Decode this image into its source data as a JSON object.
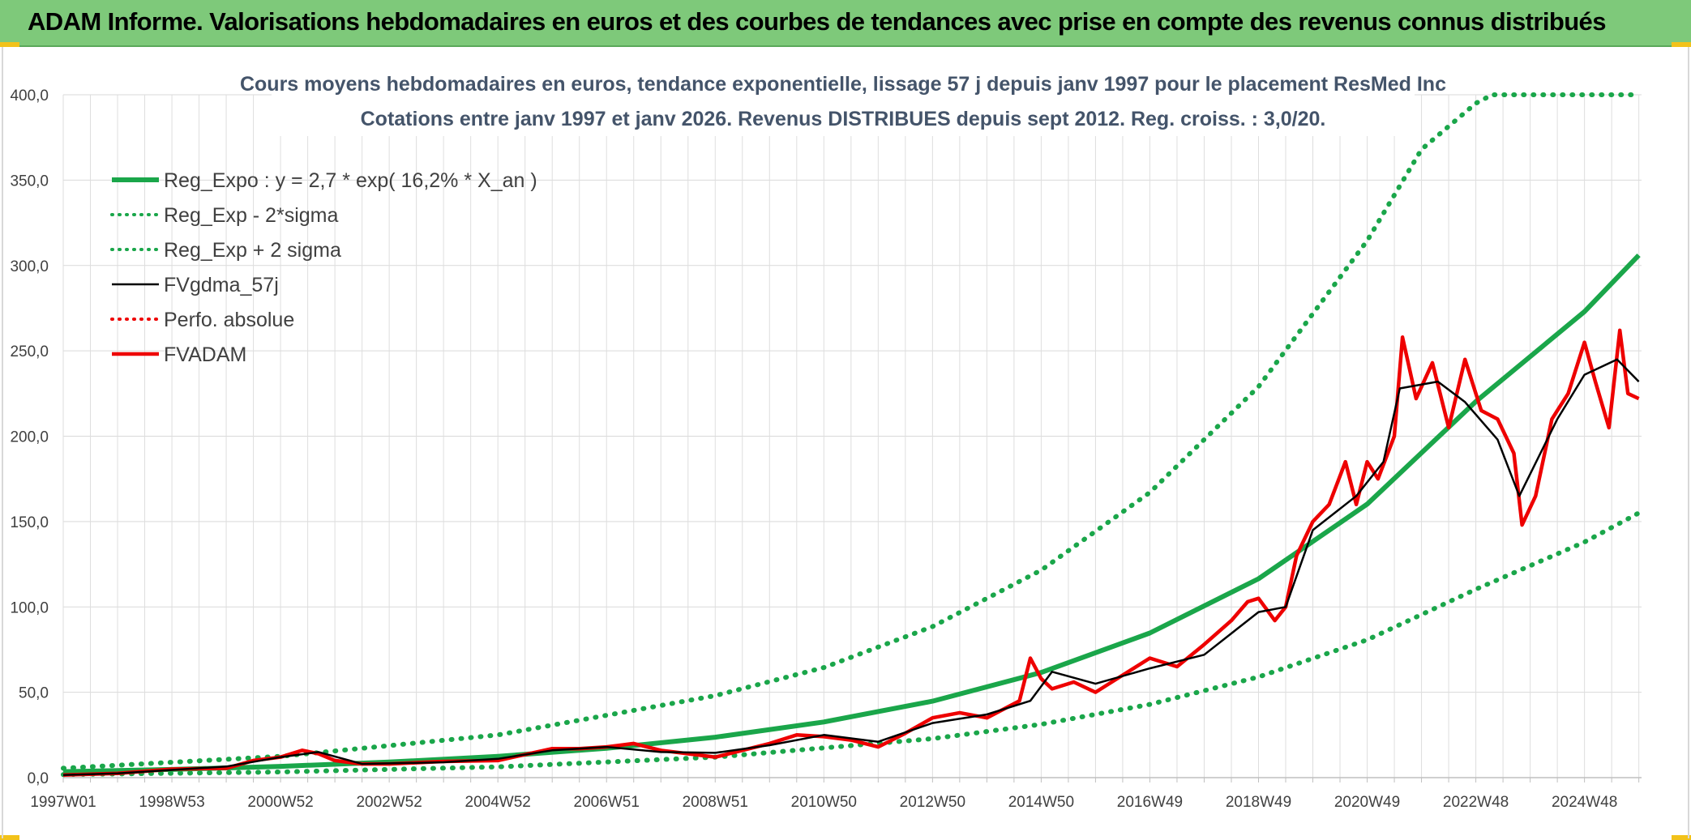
{
  "banner": {
    "title": "ADAM Informe. Valorisations hebdomadaires en euros et des courbes de tendances avec prise en compte des revenus connus distribués"
  },
  "colors": {
    "banner_bg": "#7ec97a",
    "trend_green": "#1aa64a",
    "series_black": "#000000",
    "series_red": "#ee0000",
    "title_blue": "#44546a"
  },
  "chart_data": {
    "type": "line",
    "title": "Cours moyens hebdomadaires en euros, tendance exponentielle, lissage 57 j depuis janv 1997 pour le placement ResMed Inc",
    "subtitle": "Cotations entre janv 1997 et janv 2026. Revenus DISTRIBUES depuis sept 2012. Reg. croiss. : 3,0/20.",
    "xlabel": "",
    "ylabel": "",
    "ylim": [
      0,
      400
    ],
    "xlim": [
      1997.0,
      2026.05
    ],
    "y_ticks": [
      "0,0",
      "50,0",
      "100,0",
      "150,0",
      "200,0",
      "250,0",
      "300,0",
      "350,0",
      "400,0"
    ],
    "x_ticks": [
      {
        "label": "1997W01",
        "x": 1997.0
      },
      {
        "label": "1998W53",
        "x": 1999.0
      },
      {
        "label": "2000W52",
        "x": 2001.0
      },
      {
        "label": "2002W52",
        "x": 2003.0
      },
      {
        "label": "2004W52",
        "x": 2005.0
      },
      {
        "label": "2006W51",
        "x": 2007.0
      },
      {
        "label": "2008W51",
        "x": 2009.0
      },
      {
        "label": "2010W50",
        "x": 2011.0
      },
      {
        "label": "2012W50",
        "x": 2013.0
      },
      {
        "label": "2014W50",
        "x": 2015.0
      },
      {
        "label": "2016W49",
        "x": 2017.0
      },
      {
        "label": "2018W49",
        "x": 2019.0
      },
      {
        "label": "2020W49",
        "x": 2021.0
      },
      {
        "label": "2022W48",
        "x": 2023.0
      },
      {
        "label": "2024W48",
        "x": 2025.0
      }
    ],
    "grid": true,
    "legend_position": "top-left",
    "series": [
      {
        "name": "Reg_Expo : y = 2,7 * exp( 16,2% *  X_an )",
        "style": "solid-thick",
        "color": "#1aa64a",
        "x": [
          1997,
          1999,
          2001,
          2003,
          2005,
          2007,
          2009,
          2011,
          2013,
          2015,
          2017,
          2019,
          2021,
          2023,
          2025,
          2026
        ],
        "y": [
          3.5,
          4.8,
          6.6,
          9.1,
          12.5,
          17.2,
          23.7,
          32.6,
          44.8,
          61.6,
          84.7,
          116.5,
          160.2,
          220.3,
          273.0,
          306.0
        ]
      },
      {
        "name": "Reg_Exp - 2*sigma",
        "style": "dotted",
        "color": "#1aa64a",
        "x": [
          1997,
          2001,
          2005,
          2009,
          2013,
          2015,
          2017,
          2019,
          2021,
          2023,
          2025,
          2026
        ],
        "y": [
          1.8,
          3.3,
          6.3,
          12.0,
          22.8,
          31.2,
          42.9,
          59.0,
          80.7,
          110.3,
          138.0,
          155.0
        ]
      },
      {
        "name": "Reg_Exp + 2 sigma",
        "style": "dotted",
        "color": "#1aa64a",
        "x": [
          1997,
          2001,
          2005,
          2009,
          2011,
          2013,
          2015,
          2017,
          2019,
          2021,
          2022,
          2023,
          2023.3,
          2026
        ],
        "y": [
          5.5,
          12.5,
          25.0,
          48.0,
          64.5,
          88.5,
          121.5,
          167.0,
          229.0,
          314.5,
          368.0,
          395.0,
          400,
          400
        ]
      },
      {
        "name": "FVgdma_57j",
        "style": "solid",
        "color": "#000000",
        "x": [
          1997,
          1998,
          1999,
          2000,
          2001,
          2001.7,
          2002.5,
          2004,
          2005,
          2006,
          2007,
          2008,
          2009,
          2010,
          2011,
          2012,
          2013,
          2014,
          2014.8,
          2015.2,
          2016,
          2017,
          2018,
          2019,
          2019.5,
          2020,
          2020.8,
          2021.3,
          2021.6,
          2022.3,
          2022.8,
          2023.4,
          2023.8,
          2024.5,
          2025,
          2025.6,
          2026
        ],
        "y": [
          1.5,
          2.5,
          4.5,
          6.5,
          12.0,
          15.0,
          8.0,
          9.0,
          11.0,
          16.0,
          18.0,
          15.0,
          14.5,
          19.0,
          25.0,
          21.0,
          32.0,
          37.0,
          45.0,
          62.0,
          55.0,
          64.0,
          72.0,
          97.0,
          100.0,
          145.0,
          165.0,
          185.0,
          228.0,
          232.0,
          220.0,
          198.0,
          165.0,
          210.0,
          236.0,
          245.0,
          232.0
        ]
      },
      {
        "name": "Perfo. absolue",
        "style": "dotted",
        "color": "#ee0000",
        "x": [],
        "y": []
      },
      {
        "name": "FVADAM",
        "style": "solid-thick",
        "color": "#ee0000",
        "x": [
          1997,
          1998,
          1999,
          2000,
          2000.5,
          2001,
          2001.4,
          2001.7,
          2002,
          2002.5,
          2003,
          2004,
          2005,
          2006,
          2006.5,
          2007,
          2007.5,
          2008,
          2008.5,
          2009,
          2010,
          2010.5,
          2011,
          2011.5,
          2012,
          2012.5,
          2013,
          2013.5,
          2014,
          2014.6,
          2014.8,
          2015.0,
          2015.2,
          2015.6,
          2016,
          2016.5,
          2017,
          2017.5,
          2018,
          2018.5,
          2018.8,
          2019,
          2019.3,
          2019.5,
          2019.7,
          2020,
          2020.3,
          2020.6,
          2020.8,
          2021.0,
          2021.2,
          2021.5,
          2021.65,
          2021.9,
          2022.2,
          2022.5,
          2022.8,
          2023.1,
          2023.4,
          2023.7,
          2023.85,
          2024.1,
          2024.4,
          2024.7,
          2025.0,
          2025.2,
          2025.45,
          2025.65,
          2025.8,
          2026
        ],
        "y": [
          1.5,
          2.5,
          5.0,
          5.5,
          10.0,
          12.0,
          16.0,
          14.0,
          10.0,
          8.0,
          8.0,
          9.5,
          10.0,
          17.0,
          17.0,
          18.0,
          20.0,
          16.0,
          14.0,
          12.0,
          20.0,
          25.0,
          24.0,
          22.0,
          18.0,
          26.0,
          35.0,
          38.0,
          35.0,
          45.0,
          70.0,
          58.0,
          52.0,
          56.0,
          50.0,
          60.0,
          70.0,
          65.0,
          78.0,
          92.0,
          103.0,
          105.0,
          92.0,
          100.0,
          130.0,
          150.0,
          160.0,
          185.0,
          160.0,
          185.0,
          175.0,
          200.0,
          258.0,
          222.0,
          243.0,
          205.0,
          245.0,
          215.0,
          210.0,
          190.0,
          148.0,
          165.0,
          210.0,
          225.0,
          255.0,
          232.0,
          205.0,
          262.0,
          225.0,
          222.0
        ]
      }
    ]
  }
}
